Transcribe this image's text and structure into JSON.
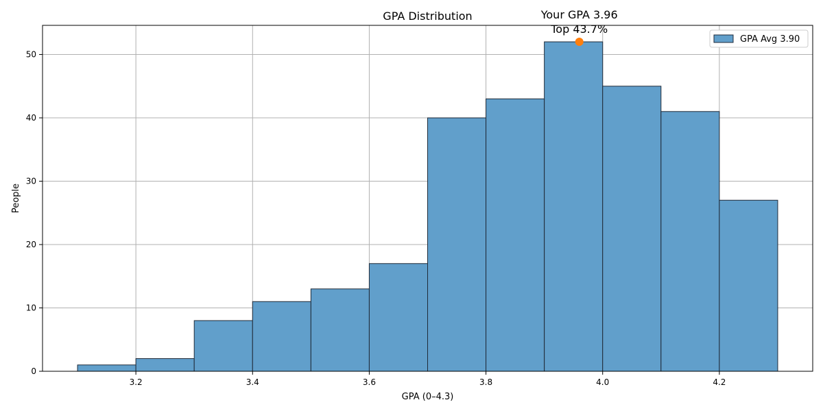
{
  "chart_data": {
    "type": "bar",
    "title": "GPA Distribution",
    "xlabel": "GPA (0–4.3)",
    "ylabel": "People",
    "bins": [
      {
        "start": 3.1,
        "end": 3.2,
        "value": 1
      },
      {
        "start": 3.2,
        "end": 3.3,
        "value": 2
      },
      {
        "start": 3.3,
        "end": 3.4,
        "value": 8
      },
      {
        "start": 3.4,
        "end": 3.5,
        "value": 11
      },
      {
        "start": 3.5,
        "end": 3.6,
        "value": 13
      },
      {
        "start": 3.6,
        "end": 3.7,
        "value": 17
      },
      {
        "start": 3.7,
        "end": 3.8,
        "value": 40
      },
      {
        "start": 3.8,
        "end": 3.9,
        "value": 43
      },
      {
        "start": 3.9,
        "end": 4.0,
        "value": 52
      },
      {
        "start": 4.0,
        "end": 4.1,
        "value": 45
      },
      {
        "start": 4.1,
        "end": 4.2,
        "value": 41
      },
      {
        "start": 4.2,
        "end": 4.3,
        "value": 27
      }
    ],
    "xlim": [
      3.04,
      4.36
    ],
    "ylim": [
      0,
      54.6
    ],
    "xticks": [
      3.2,
      3.4,
      3.6,
      3.8,
      4.0,
      4.2
    ],
    "xtick_labels": [
      "3.2",
      "3.4",
      "3.6",
      "3.8",
      "4.0",
      "4.2"
    ],
    "yticks": [
      0,
      10,
      20,
      30,
      40,
      50
    ],
    "ytick_labels": [
      "0",
      "10",
      "20",
      "30",
      "40",
      "50"
    ],
    "grid": true,
    "legend": {
      "label": "GPA Avg 3.90",
      "placement": "top-right"
    },
    "highlight": {
      "x": 3.96,
      "y": 52,
      "label_line1": "Your GPA 3.96",
      "label_line2": "Top 43.7%"
    },
    "colors": {
      "bar_fill": "#619fcb",
      "bar_edge": "#1f2a38",
      "grid": "#b0b0b0",
      "highlight": "#ff7f0e"
    }
  }
}
